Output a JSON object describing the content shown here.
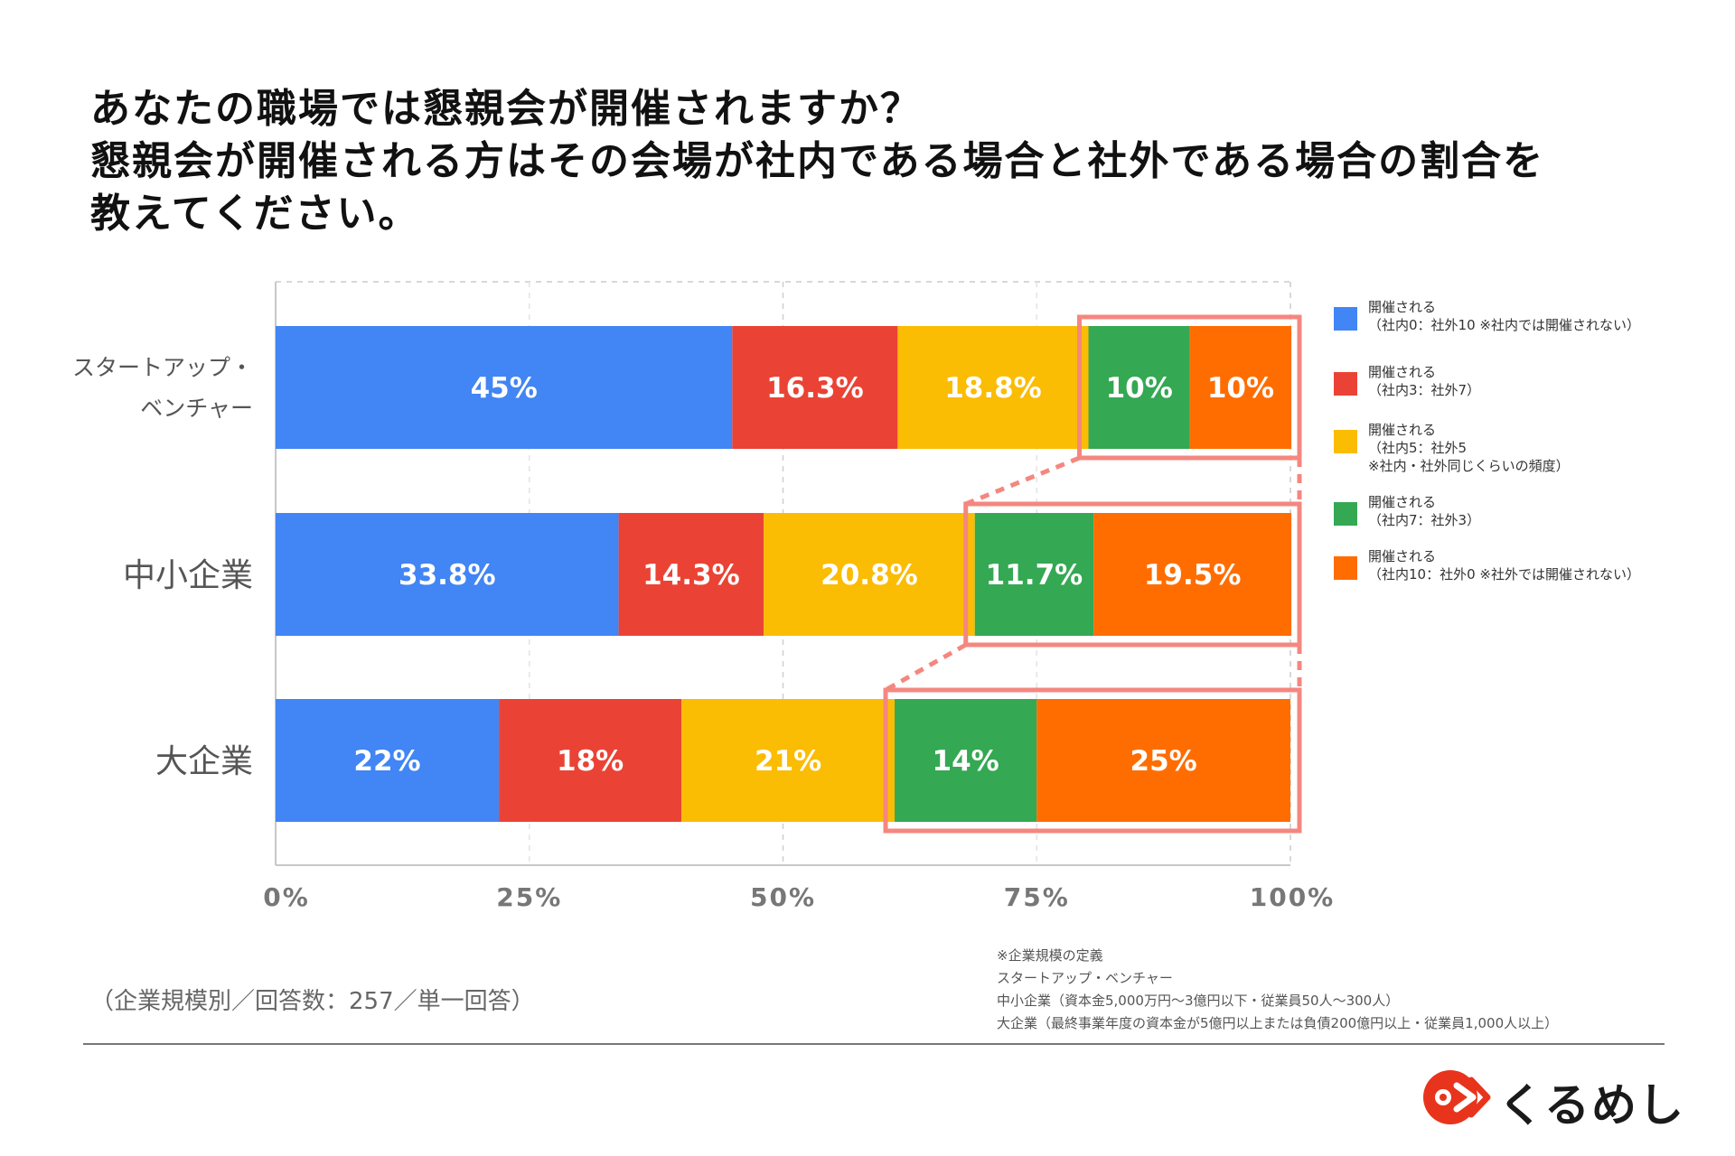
{
  "title": {
    "line1": "あなたの職場では懇親会が開催されますか？",
    "line2": "懇親会が開催される方はその会場が社内である場合と社外である場合の割合を",
    "line3": "教えてください。"
  },
  "colors": {
    "blue": "#4285F4",
    "red": "#EA4335",
    "yellow": "#FBBC04",
    "green": "#34A853",
    "orange": "#FF6D01",
    "highlight": "#F4877F"
  },
  "chart_data": {
    "type": "bar",
    "orientation": "horizontal-stacked-100",
    "categories": [
      [
        "スタートアップ・",
        "ベンチャー"
      ],
      [
        "中小企業"
      ],
      [
        "大企業"
      ]
    ],
    "series": [
      {
        "legend_lines": [
          "開催される",
          "（社内0：社外10 ※社内では開催されない）"
        ],
        "color": "#4285F4",
        "values": [
          45,
          33.8,
          22
        ],
        "labels": [
          "45%",
          "33.8%",
          "22%"
        ]
      },
      {
        "legend_lines": [
          "開催される",
          "（社内3：社外7）"
        ],
        "color": "#EA4335",
        "values": [
          16.3,
          14.3,
          18
        ],
        "labels": [
          "16.3%",
          "14.3%",
          "18%"
        ]
      },
      {
        "legend_lines": [
          "開催される",
          "（社内5：社外5",
          "※社内・社外同じくらいの頻度）"
        ],
        "color": "#FBBC04",
        "values": [
          18.8,
          20.8,
          21
        ],
        "labels": [
          "18.8%",
          "20.8%",
          "21%"
        ]
      },
      {
        "legend_lines": [
          "開催される",
          "（社内7：社外3）"
        ],
        "color": "#34A853",
        "values": [
          10,
          11.7,
          14
        ],
        "labels": [
          "10%",
          "11.7%",
          "14%"
        ]
      },
      {
        "legend_lines": [
          "開催される",
          "（社内10：社外0 ※社外では開催されない）"
        ],
        "color": "#FF6D01",
        "values": [
          10,
          19.5,
          25
        ],
        "labels": [
          "10%",
          "19.5%",
          "25%"
        ]
      }
    ],
    "xlim": [
      0,
      100
    ],
    "xticks": [
      "0%",
      "25%",
      "50%",
      "75%",
      "100%"
    ],
    "grid": true,
    "legend_position": "right",
    "highlight_series": [
      3,
      4
    ]
  },
  "footnote_left": "（企業規模別／回答数：257／単一回答）",
  "footnote_right": [
    "※企業規模の定義",
    "スタートアップ・ベンチャー",
    "中小企業（資本金5,000万円〜3億円以下・従業員50人〜300人）",
    "大企業（最終事業年度の資本金が5億円以上または負債200億円以上・従業員1,000人以上）"
  ],
  "logo": {
    "text": "くるめし",
    "icon": "kurumeshi-logo-icon"
  }
}
